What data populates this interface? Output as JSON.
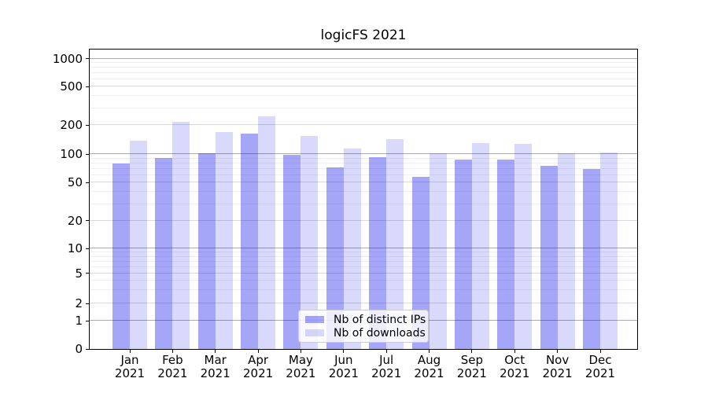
{
  "title": "logicFS 2021",
  "legend": {
    "items": [
      "Nb of distinct IPs",
      "Nb of downloads"
    ],
    "position": "lower center"
  },
  "x_axis": {
    "months": [
      "Jan",
      "Feb",
      "Mar",
      "Apr",
      "May",
      "Jun",
      "Jul",
      "Aug",
      "Sep",
      "Oct",
      "Nov",
      "Dec"
    ],
    "year": "2021"
  },
  "y_axis": {
    "tick_values": [
      1000,
      500,
      200,
      100,
      50,
      20,
      10,
      5,
      2,
      1,
      0
    ]
  },
  "colors": {
    "bar_distinct_ips": "rgba(0,0,238,0.35)",
    "bar_downloads": "rgba(0,0,238,0.15)",
    "grid_major": "#ababab",
    "grid_mid": "#d9d9d9",
    "grid_minor": "#efeff2",
    "axis": "#000000",
    "legend_border": "#cccccc"
  },
  "chart_data": {
    "type": "bar",
    "title": "logicFS 2021",
    "categories": [
      "Jan 2021",
      "Feb 2021",
      "Mar 2021",
      "Apr 2021",
      "May 2021",
      "Jun 2021",
      "Jul 2021",
      "Aug 2021",
      "Sep 2021",
      "Oct 2021",
      "Nov 2021",
      "Dec 2021"
    ],
    "series": [
      {
        "name": "Nb of distinct IPs",
        "color": "rgba(0,0,238,0.35)",
        "values": [
          80,
          92,
          102,
          165,
          99,
          73,
          93,
          58,
          88,
          88,
          75,
          70
        ]
      },
      {
        "name": "Nb of downloads",
        "color": "rgba(0,0,238,0.15)",
        "values": [
          138,
          218,
          170,
          246,
          156,
          115,
          143,
          102,
          130,
          129,
          103,
          104
        ]
      }
    ],
    "xlabel": "",
    "ylabel": "",
    "yscale": "symlog",
    "ylim": [
      0,
      1200
    ],
    "y_ticks": [
      0,
      1,
      2,
      5,
      10,
      20,
      50,
      100,
      200,
      500,
      1000
    ],
    "grid": "horizontal",
    "legend_position": "lower center"
  }
}
